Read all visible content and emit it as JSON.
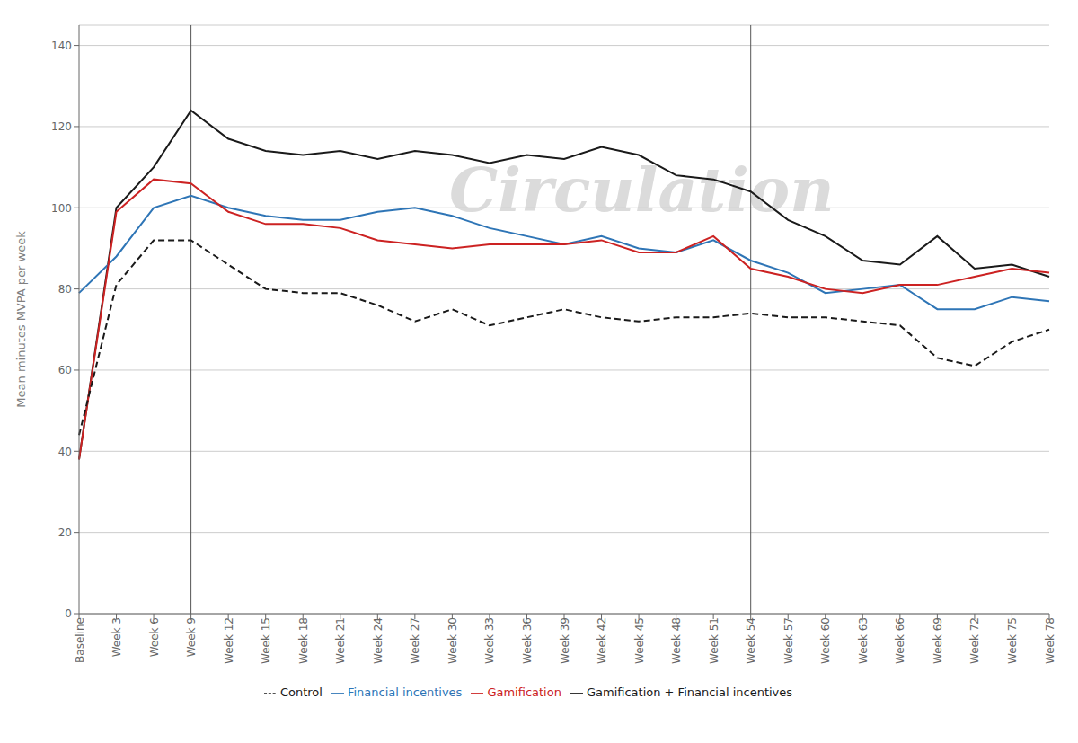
{
  "chart_data": {
    "type": "line",
    "categories": [
      "Baseline",
      "Week 3",
      "Week 6",
      "Week 9",
      "Week 12",
      "Week 15",
      "Week 18",
      "Week 21",
      "Week 24",
      "Week 27",
      "Week 30",
      "Week 33",
      "Week 36",
      "Week 39",
      "Week 42",
      "Week 45",
      "Week 48",
      "Week 51",
      "Week 54",
      "Week 57",
      "Week 60",
      "Week 63",
      "Week 66",
      "Week 69",
      "Week 72",
      "Week 75",
      "Week 78"
    ],
    "series": [
      {
        "name": "Gamification + Financial incentives",
        "color": "#1a1a1a",
        "line_style": "solid",
        "values": [
          38,
          100,
          110,
          124,
          117,
          114,
          113,
          114,
          112,
          114,
          113,
          111,
          113,
          112,
          115,
          113,
          108,
          107,
          104,
          97,
          93,
          87,
          86,
          93,
          85,
          86,
          83
        ]
      },
      {
        "name": "Financial incentives",
        "color": "#2e75b6",
        "line_style": "solid",
        "values": [
          79,
          88,
          100,
          103,
          100,
          98,
          97,
          97,
          99,
          100,
          98,
          95,
          93,
          91,
          93,
          90,
          89,
          92,
          87,
          84,
          79,
          80,
          81,
          75,
          75,
          78,
          77
        ]
      },
      {
        "name": "Gamification",
        "color": "#cc2222",
        "line_style": "solid",
        "values": [
          38,
          99,
          107,
          106,
          99,
          96,
          96,
          95,
          92,
          91,
          90,
          91,
          91,
          91,
          92,
          89,
          89,
          93,
          85,
          83,
          80,
          79,
          81,
          81,
          83,
          85,
          84
        ]
      },
      {
        "name": "Control",
        "color": "#1a1a1a",
        "line_style": "dashed",
        "values": [
          44,
          81,
          92,
          92,
          86,
          80,
          79,
          79,
          76,
          72,
          75,
          71,
          73,
          75,
          73,
          72,
          73,
          73,
          74,
          73,
          73,
          72,
          71,
          63,
          61,
          67,
          70
        ]
      }
    ],
    "ylabel": "Mean minutes MVPA per week",
    "ylim": [
      0,
      145
    ],
    "yticks": [
      0,
      20,
      40,
      60,
      80,
      100,
      120,
      140
    ],
    "grid": true,
    "legend": "bottom",
    "reference_lines": [
      {
        "x": "Week 9",
        "color": "#555555"
      },
      {
        "x": "Week 54",
        "color": "#555555"
      }
    ],
    "annotations": [
      {
        "text": "Circulation",
        "color": "#cccccc"
      }
    ]
  }
}
